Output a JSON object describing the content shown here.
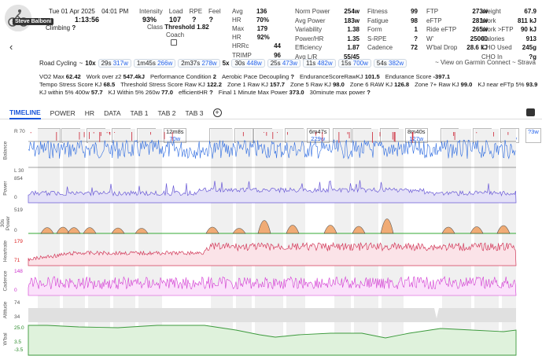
{
  "athlete": {
    "name": "Steve Balboni"
  },
  "activity": {
    "date": "Tue 01 Apr 2025",
    "time": "04:01 PM",
    "duration": "1:13:56",
    "type_label": "Climbing",
    "type_suffix": "?"
  },
  "summary": {
    "intensity_label": "Intensity",
    "intensity": "93%",
    "load_label": "Load",
    "load": "107",
    "rpe_label": "RPE",
    "rpe": "?",
    "feel_label": "Feel",
    "feel": "?",
    "class_label": "Class",
    "class_value": "Threshold",
    "class_num": "1.82",
    "coach_label": "Coach"
  },
  "col2": [
    {
      "label": "Avg HR",
      "value": "136 70%"
    },
    {
      "label": "Max HR",
      "value": "179 92%"
    },
    {
      "label": "HRRc",
      "value": "44"
    },
    {
      "label": "TRIMP",
      "value": "96"
    }
  ],
  "col3": [
    {
      "label": "Norm Power",
      "value": "254w"
    },
    {
      "label": "Avg Power",
      "value": "183w"
    },
    {
      "label": "Variability",
      "value": "1.38"
    },
    {
      "label": "Power/HR",
      "value": "1.35"
    },
    {
      "label": "Efficiency",
      "value": "1.87"
    },
    {
      "label": "Avg L/R",
      "value": "55/45"
    }
  ],
  "col4": [
    {
      "label": "Fitness",
      "value": "99"
    },
    {
      "label": "Fatigue",
      "value": "98"
    },
    {
      "label": "Form",
      "value": "1"
    },
    {
      "label": "S-RPE",
      "value": "?"
    },
    {
      "label": "Cadence",
      "value": "72"
    }
  ],
  "col5": [
    {
      "label": "FTP",
      "value": "273w"
    },
    {
      "label": "eFTP",
      "value": "281w"
    },
    {
      "label": "Ride eFTP",
      "value": "265w"
    },
    {
      "label": "W'",
      "value": "25000"
    },
    {
      "label": "W'bal Drop",
      "value": "28.6 kJ"
    }
  ],
  "col6": [
    {
      "label": "Weight",
      "value": "67.9"
    },
    {
      "label": "Work",
      "value": "811 kJ"
    },
    {
      "label": "Work >FTP",
      "value": "90 kJ"
    },
    {
      "label": "Calories",
      "value": "913"
    },
    {
      "label": "CHO Used",
      "value": "245g"
    },
    {
      "label": "CHO In",
      "value": "?g"
    }
  ],
  "intervals_bar": {
    "prefix": "Road Cycling",
    "items": [
      {
        "count": "10x",
        "dur": "29s",
        "watts": "317w"
      },
      {
        "count": "",
        "dur": "1m45s",
        "watts": "266w"
      },
      {
        "count": "",
        "dur": "2m37s",
        "watts": "278w"
      },
      {
        "count": "5x",
        "dur": "30s",
        "watts": "448w"
      },
      {
        "count": "",
        "dur": "25s",
        "watts": "473w"
      },
      {
        "count": "",
        "dur": "11s",
        "watts": "482w"
      },
      {
        "count": "",
        "dur": "15s",
        "watts": "700w"
      },
      {
        "count": "",
        "dur": "54s",
        "watts": "382w"
      }
    ],
    "external_link": "~ View on Garmin Connect ~ Strava"
  },
  "metrics": {
    "line1": [
      {
        "label": "VO2 Max",
        "value": "62.42"
      },
      {
        "label": "Work over z2",
        "value": "547.4kJ"
      },
      {
        "label": "Performance Condition",
        "value": "2"
      },
      {
        "label": "Aerobic Pace Decoupling",
        "value": "?"
      },
      {
        "label": "EnduranceScoreRawKJ",
        "value": "101.5"
      },
      {
        "label": "Endurance Score",
        "value": "-397.1"
      }
    ],
    "line2": [
      {
        "label": "Tempo Stress Score KJ",
        "value": "68.5"
      },
      {
        "label": "Threshold Stress Score Raw KJ",
        "value": "122.2"
      },
      {
        "label": "Zone 1 Raw KJ",
        "value": "157.7"
      },
      {
        "label": "Zone 5 Raw KJ",
        "value": "98.0"
      },
      {
        "label": "Zone 6 RAW KJ",
        "value": "126.8"
      },
      {
        "label": "Zone 7+ Raw KJ",
        "value": "99.0"
      },
      {
        "label": "KJ near eFTp 5%",
        "value": "93.9"
      }
    ],
    "line3": [
      {
        "label": "KJ within 5% 400w",
        "value": "57.7"
      },
      {
        "label": "KJ Within 5% 260w",
        "value": "77.0"
      },
      {
        "label": "efficientHR",
        "value": "?"
      },
      {
        "label": "Final 1 Minute Max Power",
        "value": "373.0"
      },
      {
        "label": "30minute max power",
        "value": "?"
      }
    ]
  },
  "tabs": [
    "TIMELINE",
    "POWER",
    "HR",
    "DATA",
    "TAB 1",
    "TAB 2",
    "TAB 3"
  ],
  "interval_boxes": [
    {
      "dur": "5m43s",
      "watts": "120w"
    },
    {
      "dur": "28s",
      "watts": "309w"
    },
    {
      "dur": "29s",
      "watts": "316w"
    },
    {
      "dur": "28s",
      "watts": "345w"
    },
    {
      "dur": "31s",
      "watts": "349w"
    },
    {
      "dur": "12m8s",
      "watts": "70w"
    },
    {
      "dur": "1m45s",
      "watts": "266w"
    },
    {
      "dur": "30s",
      "watts": "317w"
    },
    {
      "dur": "30s",
      "watts": "419w"
    },
    {
      "dur": "25s",
      "watts": "473w"
    },
    {
      "dur": "6m47s",
      "watts": "229w"
    },
    {
      "dur": "11s",
      "watts": "482w"
    },
    {
      "dur": "32s",
      "watts": "295w"
    },
    {
      "dur": "15s",
      "watts": "700w"
    },
    {
      "dur": "8m40s",
      "watts": "127w"
    },
    {
      "dur": "29s",
      "watts": "411w"
    },
    {
      "dur": "54s",
      "watts": "382w"
    },
    {
      "dur": "29s",
      "watts": "463w"
    },
    {
      "dur": "",
      "watts": "?3w"
    }
  ],
  "tracks": [
    {
      "name": "Balance",
      "ticks": [
        "R 70",
        "L 30"
      ]
    },
    {
      "name": "Power",
      "ticks": [
        "854",
        "0"
      ]
    },
    {
      "name": "30s Power",
      "ticks": [
        "519",
        "0"
      ]
    },
    {
      "name": "Heartrate",
      "ticks": [
        "179",
        "71"
      ]
    },
    {
      "name": "Cadence",
      "ticks": [
        "148",
        "0"
      ]
    },
    {
      "name": "Altitude",
      "ticks": [
        "74",
        "34"
      ]
    },
    {
      "name": "W'bal",
      "ticks": [
        "25.0",
        "3.5",
        "-3.5"
      ]
    }
  ],
  "colors": {
    "accent": "#1a56db",
    "power": "#6b5bd6",
    "hr": "#d23a5a",
    "cadence": "#d23ad2",
    "wbal": "#3c9a3c",
    "balance": "#2d6be0"
  }
}
